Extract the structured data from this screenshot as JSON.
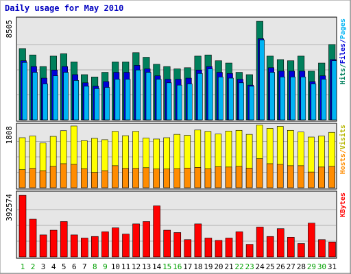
{
  "chart_data": [
    {
      "type": "bar",
      "title": "Daily usage for May 2010",
      "ylabel": "Hits/Files/Pages",
      "ytick": "8505",
      "ylim": [
        0,
        8505
      ],
      "categories": [
        "1",
        "2",
        "3",
        "4",
        "5",
        "6",
        "7",
        "8",
        "9",
        "10",
        "11",
        "12",
        "13",
        "14",
        "15",
        "16",
        "17",
        "18",
        "19",
        "20",
        "21",
        "22",
        "23",
        "24",
        "25",
        "26",
        "27",
        "28",
        "29",
        "30",
        "31"
      ],
      "weekend_days": [
        "1",
        "2",
        "8",
        "9",
        "15",
        "16",
        "22",
        "23",
        "29",
        "30"
      ],
      "series": [
        {
          "name": "Hits",
          "color": "#00805c",
          "values": [
            6150,
            5600,
            4600,
            5500,
            5700,
            5000,
            3900,
            3700,
            4100,
            5000,
            5000,
            5800,
            5400,
            4800,
            4600,
            4400,
            4500,
            5500,
            5600,
            5100,
            4900,
            4100,
            3900,
            8500,
            5500,
            5200,
            5100,
            5500,
            4200,
            4900,
            6500
          ]
        },
        {
          "name": "Files",
          "color": "#0000d8",
          "values": [
            5100,
            4600,
            3600,
            4300,
            4600,
            3900,
            3200,
            2900,
            3300,
            4100,
            4100,
            4700,
            4400,
            3800,
            3500,
            3500,
            3600,
            4300,
            4600,
            4100,
            4000,
            3500,
            3000,
            7000,
            4500,
            4200,
            4200,
            4200,
            3300,
            3800,
            5200
          ]
        },
        {
          "name": "Pages",
          "color": "#00b4f4",
          "values": [
            4950,
            4100,
            3100,
            3800,
            4100,
            3400,
            2900,
            2700,
            2800,
            3500,
            3500,
            4300,
            4100,
            3500,
            3200,
            3000,
            3100,
            4000,
            4400,
            3700,
            3600,
            3200,
            2900,
            6900,
            4100,
            3700,
            3700,
            3700,
            3100,
            3500,
            5100
          ]
        }
      ]
    },
    {
      "type": "bar",
      "ylabel": "Hosts/Visits",
      "ytick": "1808",
      "ylim": [
        0,
        1808
      ],
      "series": [
        {
          "name": "Visits",
          "color": "#ffff00",
          "values": [
            1500,
            1550,
            1340,
            1540,
            1710,
            1850,
            1410,
            1480,
            1440,
            1690,
            1560,
            1690,
            1490,
            1460,
            1500,
            1600,
            1570,
            1730,
            1690,
            1610,
            1700,
            1720,
            1600,
            1880,
            1780,
            1840,
            1720,
            1670,
            1520,
            1550,
            1660
          ]
        },
        {
          "name": "Hosts",
          "color": "#ff8c00",
          "values": [
            540,
            580,
            510,
            640,
            720,
            700,
            570,
            460,
            510,
            660,
            580,
            580,
            600,
            560,
            560,
            570,
            590,
            610,
            570,
            630,
            620,
            640,
            590,
            870,
            720,
            700,
            660,
            660,
            470,
            620,
            640
          ]
        }
      ]
    },
    {
      "type": "bar",
      "ylabel": "KBytes",
      "ytick": "392574",
      "ylim": [
        0,
        392574
      ],
      "series": [
        {
          "name": "KBytes",
          "color": "#ff0000",
          "values": [
            392000,
            240000,
            140000,
            170000,
            225000,
            140000,
            120000,
            130000,
            160000,
            185000,
            145000,
            210000,
            225000,
            325000,
            170000,
            155000,
            110000,
            210000,
            120000,
            105000,
            120000,
            160000,
            80000,
            190000,
            130000,
            180000,
            125000,
            85000,
            215000,
            110000,
            95000
          ]
        }
      ]
    }
  ]
}
